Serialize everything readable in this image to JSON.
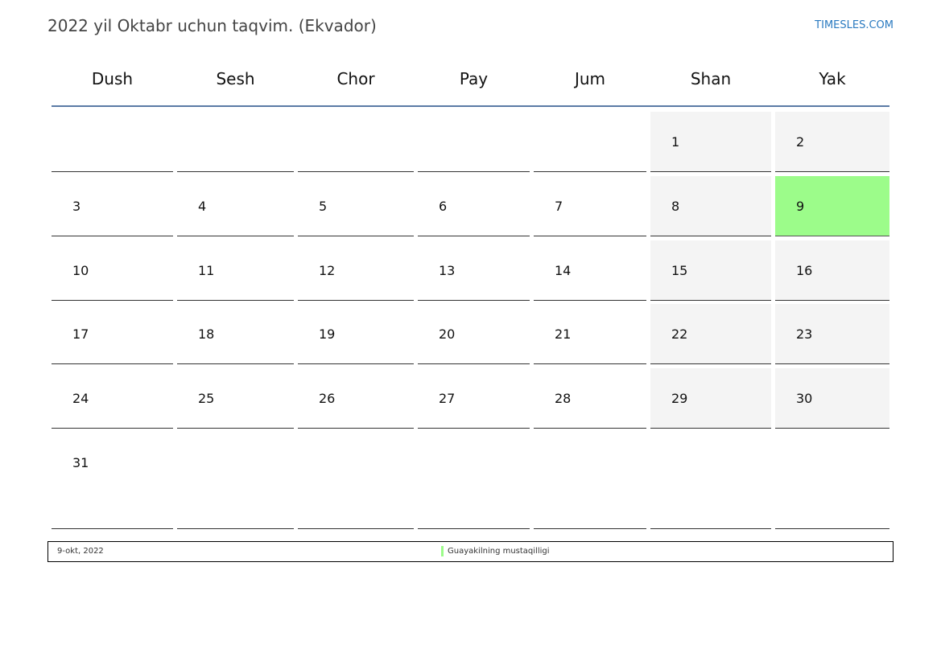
{
  "title": "2022 yil Oktabr uchun taqvim. (Ekvador)",
  "brand": "TIMESLES.COM",
  "weekdays": [
    "Dush",
    "Sesh",
    "Chor",
    "Pay",
    "Jum",
    "Shan",
    "Yak"
  ],
  "weeks": [
    [
      "",
      "",
      "",
      "",
      "",
      "1",
      "2"
    ],
    [
      "3",
      "4",
      "5",
      "6",
      "7",
      "8",
      "9"
    ],
    [
      "10",
      "11",
      "12",
      "13",
      "14",
      "15",
      "16"
    ],
    [
      "17",
      "18",
      "19",
      "20",
      "21",
      "22",
      "23"
    ],
    [
      "24",
      "25",
      "26",
      "27",
      "28",
      "29",
      "30"
    ],
    [
      "31",
      "",
      "",
      "",
      "",
      "",
      ""
    ]
  ],
  "holidays": [
    {
      "day": "9",
      "date": "9-okt, 2022",
      "name": "Guayakilning mustaqilligi",
      "color": "#9cfc8a"
    }
  ],
  "colors": {
    "weekend": "#f4f4f4",
    "header_line": "#5a7aa5",
    "brand": "#2a7ac0"
  }
}
